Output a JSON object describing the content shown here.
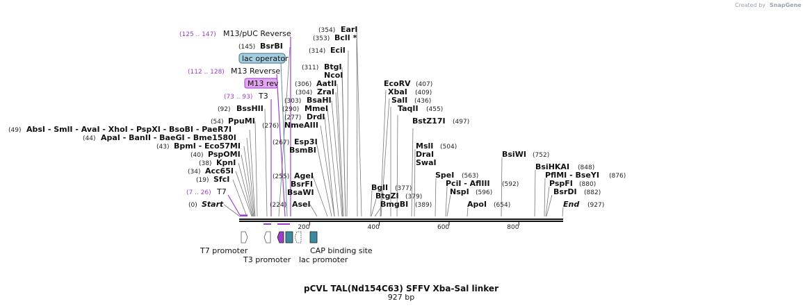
{
  "credit": {
    "text": "Created by",
    "brand": "SnapGene"
  },
  "title": "pCVL TAL(Nd154C63) SFFV Xba-Sal linker",
  "length": "927 bp",
  "sequence_length": 927,
  "ruler_ticks": [
    "200",
    "400",
    "600",
    "800"
  ],
  "primers": [
    {
      "range": "(125 .. 147)",
      "name": "M13/pUC Reverse",
      "site": 136
    },
    {
      "range": "(112 .. 128)",
      "name": "M13 Reverse",
      "site": 120
    },
    {
      "range": "(73 .. 93)",
      "name": "T3",
      "site": 83
    },
    {
      "range": "(7 .. 26)",
      "name": "T7",
      "site": 16
    }
  ],
  "boxed": [
    {
      "name": "lac operator",
      "fill": "#a6cfe0",
      "site": 133
    },
    {
      "name": "M13 rev",
      "fill": "#e3a6f0",
      "site": 120
    }
  ],
  "sites": [
    {
      "pos": "(354)",
      "name": "EarI",
      "site": 354
    },
    {
      "pos": "(353)",
      "name": "BclI *",
      "site": 353
    },
    {
      "pos": "(145)",
      "name": "BsrBI",
      "site": 145
    },
    {
      "pos": "(314)",
      "name": "EciI",
      "site": 314
    },
    {
      "pos": "(311)",
      "name": "BtgI",
      "site": 311
    },
    {
      "pos": "",
      "name": "NcoI",
      "site": 311
    },
    {
      "pos": "(306)",
      "name": "AatII",
      "site": 306
    },
    {
      "pos": "(304)",
      "name": "ZraI",
      "site": 304
    },
    {
      "pos": "(303)",
      "name": "BsaHI",
      "site": 303
    },
    {
      "pos": "(290)",
      "name": "MmeI",
      "site": 290
    },
    {
      "pos": "(277)",
      "name": "DrdI",
      "site": 277
    },
    {
      "pos": "(92)",
      "name": "BssHII",
      "site": 92
    },
    {
      "pos": "(276)",
      "name": "NmeAIII",
      "site": 276
    },
    {
      "pos": "(54)",
      "name": "PpuMI",
      "site": 54
    },
    {
      "pos": "(49)",
      "name": "AbsI - SmlI - AvaI - XhoI - PspXI - BsoBI - PaeR7I",
      "site": 49
    },
    {
      "pos": "(44)",
      "name": "ApaI - BanII - BaeGI - Bme1580I",
      "site": 44
    },
    {
      "pos": "(43)",
      "name": "BpmI - Eco57MI",
      "site": 43
    },
    {
      "pos": "(40)",
      "name": "PspOMI",
      "site": 40
    },
    {
      "pos": "(38)",
      "name": "KpnI",
      "site": 38
    },
    {
      "pos": "(34)",
      "name": "Acc65I",
      "site": 34
    },
    {
      "pos": "(19)",
      "name": "SfcI",
      "site": 19
    },
    {
      "pos": "(267)",
      "name": "Esp3I",
      "site": 267
    },
    {
      "pos": "",
      "name": "BsmBI",
      "site": 267
    },
    {
      "pos": "(255)",
      "name": "AgeI",
      "site": 255
    },
    {
      "pos": "",
      "name": "BsrFI",
      "site": 255
    },
    {
      "pos": "",
      "name": "BsaWI",
      "site": 255
    },
    {
      "pos": "(224)",
      "name": "AseI",
      "site": 224
    },
    {
      "pos": "(0)",
      "name": "Start",
      "site": 0
    },
    {
      "pos": "(407)",
      "name": "EcoRV",
      "site": 407
    },
    {
      "pos": "(409)",
      "name": "XbaI",
      "site": 409
    },
    {
      "pos": "(436)",
      "name": "SalI",
      "site": 436
    },
    {
      "pos": "(455)",
      "name": "TaqII",
      "site": 455
    },
    {
      "pos": "(497)",
      "name": "BstZ17I",
      "site": 497
    },
    {
      "pos": "(504)",
      "name": "MslI",
      "site": 504
    },
    {
      "pos": "",
      "name": "DraI",
      "site": 504
    },
    {
      "pos": "",
      "name": "SwaI",
      "site": 504
    },
    {
      "pos": "(377)",
      "name": "BglI",
      "site": 377
    },
    {
      "pos": "(379)",
      "name": "BtgZI",
      "site": 379
    },
    {
      "pos": "(389)",
      "name": "BmgBI",
      "site": 389
    },
    {
      "pos": "(563)",
      "name": "SpeI",
      "site": 563
    },
    {
      "pos": "(592)",
      "name": "PciI - AflIII",
      "site": 592
    },
    {
      "pos": "(596)",
      "name": "NspI",
      "site": 596
    },
    {
      "pos": "(654)",
      "name": "ApoI",
      "site": 654
    },
    {
      "pos": "(752)",
      "name": "BsiWI",
      "site": 752
    },
    {
      "pos": "(848)",
      "name": "BsiHKAI",
      "site": 848
    },
    {
      "pos": "(876)",
      "name": "PflMI - BseYI",
      "site": 876
    },
    {
      "pos": "(880)",
      "name": "PspFI",
      "site": 880
    },
    {
      "pos": "(882)",
      "name": "BsrDI",
      "site": 882
    },
    {
      "pos": "(927)",
      "name": "End",
      "site": 927
    }
  ],
  "features": [
    {
      "name": "T7 promoter",
      "start": 1,
      "end": 19,
      "direction": "forward",
      "color": "#ffffff"
    },
    {
      "name": "T3 promoter",
      "start": 69,
      "end": 87,
      "direction": "reverse",
      "color": "#ffffff"
    },
    {
      "name": "M13 rev",
      "start": 112,
      "end": 128,
      "direction": "reverse",
      "color": "#9b3fc8"
    },
    {
      "name": "lac operator",
      "start": 136,
      "end": 152,
      "direction": "none",
      "color": "#3b8aa0"
    },
    {
      "name": "lac promoter",
      "start": 160,
      "end": 190,
      "direction": "reverse",
      "color": "#ffffff"
    },
    {
      "name": "CAP binding site",
      "start": 205,
      "end": 226,
      "direction": "none",
      "color": "#3b8aa0"
    }
  ]
}
